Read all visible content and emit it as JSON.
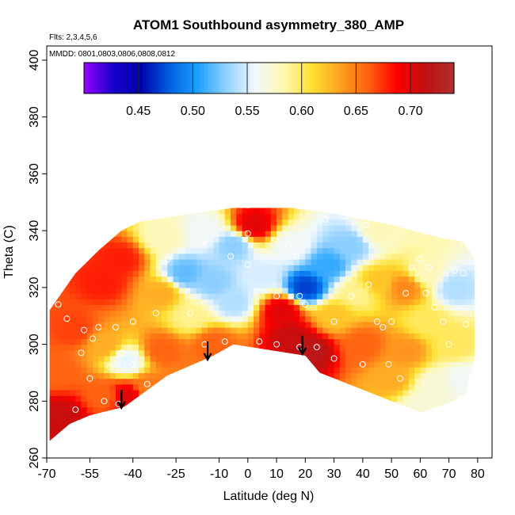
{
  "chart_data": {
    "type": "heatmap",
    "title": "ATOM1 Southbound asymmetry_380_AMP",
    "flights_note": "Flts: 2,3,4,5,6",
    "dates_note": "MMDD: 0801,0803,0806,0808,0812",
    "xlabel": "Latitude (deg N)",
    "ylabel": "Theta (C)",
    "xlim": [
      -70,
      85
    ],
    "ylim": [
      260,
      405
    ],
    "xticks": [
      -70,
      -55,
      -40,
      -25,
      -10,
      0,
      10,
      20,
      30,
      40,
      50,
      60,
      70,
      80
    ],
    "yticks": [
      260,
      280,
      300,
      320,
      340,
      360,
      380,
      400
    ],
    "colorbar": {
      "range": [
        0.4,
        0.74
      ],
      "ticks": [
        0.45,
        0.5,
        0.55,
        0.6,
        0.65,
        0.7
      ],
      "tick_labels": [
        "0.45",
        "0.50",
        "0.55",
        "0.60",
        "0.65",
        "0.70"
      ],
      "colors": [
        "#9900ff",
        "#1a00cc",
        "#0000aa",
        "#0060e0",
        "#1ea0ff",
        "#8fd0ff",
        "#f0f8ff",
        "#fff8b0",
        "#ffe030",
        "#ffa020",
        "#ff6010",
        "#ff0000",
        "#c01010",
        "#b03030"
      ]
    },
    "boundary": [
      [
        -69,
        266
      ],
      [
        -69,
        312
      ],
      [
        -60,
        325
      ],
      [
        -52,
        333
      ],
      [
        -44,
        340
      ],
      [
        -38,
        343
      ],
      [
        -20,
        346
      ],
      [
        -5,
        348
      ],
      [
        15,
        348
      ],
      [
        30,
        346
      ],
      [
        50,
        342
      ],
      [
        65,
        338
      ],
      [
        75,
        336
      ],
      [
        79,
        330
      ],
      [
        79,
        295
      ],
      [
        76,
        283
      ],
      [
        72,
        280
      ],
      [
        60,
        276
      ],
      [
        40,
        284
      ],
      [
        25,
        290
      ],
      [
        20,
        296
      ],
      [
        -5,
        300
      ],
      [
        -12,
        296
      ],
      [
        -28,
        289
      ],
      [
        -43,
        278
      ],
      [
        -55,
        275
      ],
      [
        -62,
        272
      ]
    ],
    "values": [
      {
        "lat": -66,
        "theta": 290,
        "v": 0.66
      },
      {
        "lat": -60,
        "theta": 305,
        "v": 0.67
      },
      {
        "lat": -50,
        "theta": 322,
        "v": 0.68
      },
      {
        "lat": -44,
        "theta": 330,
        "v": 0.68
      },
      {
        "lat": -50,
        "theta": 300,
        "v": 0.63
      },
      {
        "lat": -42,
        "theta": 294,
        "v": 0.555
      },
      {
        "lat": -50,
        "theta": 282,
        "v": 0.66
      },
      {
        "lat": -42,
        "theta": 282,
        "v": 0.7
      },
      {
        "lat": -35,
        "theta": 285,
        "v": 0.65
      },
      {
        "lat": -65,
        "theta": 275,
        "v": 0.71
      },
      {
        "lat": -30,
        "theta": 298,
        "v": 0.66
      },
      {
        "lat": -30,
        "theta": 318,
        "v": 0.63
      },
      {
        "lat": -30,
        "theta": 338,
        "v": 0.58
      },
      {
        "lat": -22,
        "theta": 325,
        "v": 0.52
      },
      {
        "lat": -20,
        "theta": 310,
        "v": 0.59
      },
      {
        "lat": -12,
        "theta": 300,
        "v": 0.66
      },
      {
        "lat": -12,
        "theta": 322,
        "v": 0.53
      },
      {
        "lat": -5,
        "theta": 315,
        "v": 0.54
      },
      {
        "lat": -15,
        "theta": 340,
        "v": 0.56
      },
      {
        "lat": -5,
        "theta": 335,
        "v": 0.53
      },
      {
        "lat": 2,
        "theta": 342,
        "v": 0.7
      },
      {
        "lat": 5,
        "theta": 324,
        "v": 0.55
      },
      {
        "lat": 12,
        "theta": 312,
        "v": 0.7
      },
      {
        "lat": 15,
        "theta": 303,
        "v": 0.71
      },
      {
        "lat": 22,
        "theta": 298,
        "v": 0.72
      },
      {
        "lat": 15,
        "theta": 335,
        "v": 0.56
      },
      {
        "lat": 20,
        "theta": 320,
        "v": 0.47
      },
      {
        "lat": 28,
        "theta": 328,
        "v": 0.51
      },
      {
        "lat": 36,
        "theta": 335,
        "v": 0.53
      },
      {
        "lat": 30,
        "theta": 310,
        "v": 0.62
      },
      {
        "lat": 40,
        "theta": 300,
        "v": 0.66
      },
      {
        "lat": 38,
        "theta": 318,
        "v": 0.59
      },
      {
        "lat": 45,
        "theta": 322,
        "v": 0.62
      },
      {
        "lat": 45,
        "theta": 340,
        "v": 0.58
      },
      {
        "lat": 55,
        "theta": 320,
        "v": 0.645
      },
      {
        "lat": 55,
        "theta": 298,
        "v": 0.64
      },
      {
        "lat": 50,
        "theta": 288,
        "v": 0.63
      },
      {
        "lat": 62,
        "theta": 308,
        "v": 0.6
      },
      {
        "lat": 62,
        "theta": 325,
        "v": 0.58
      },
      {
        "lat": 72,
        "theta": 320,
        "v": 0.54
      },
      {
        "lat": 72,
        "theta": 300,
        "v": 0.6
      },
      {
        "lat": 65,
        "theta": 285,
        "v": 0.57
      },
      {
        "lat": 75,
        "theta": 288,
        "v": 0.56
      },
      {
        "lat": 60,
        "theta": 278,
        "v": 0.57
      }
    ],
    "obs_points": [
      [
        -66,
        314
      ],
      [
        -63,
        309
      ],
      [
        -57,
        305
      ],
      [
        -54,
        302
      ],
      [
        -52,
        306
      ],
      [
        -58,
        297
      ],
      [
        -55,
        288
      ],
      [
        -60,
        277
      ],
      [
        -50,
        280
      ],
      [
        -45,
        279
      ],
      [
        -48,
        292
      ],
      [
        -46,
        306
      ],
      [
        -44,
        297
      ],
      [
        -40,
        308
      ],
      [
        -40,
        293
      ],
      [
        -35,
        286
      ],
      [
        -32,
        311
      ],
      [
        -28,
        330
      ],
      [
        -20,
        311
      ],
      [
        -16,
        336
      ],
      [
        -15,
        300
      ],
      [
        -8,
        301
      ],
      [
        -6,
        331
      ],
      [
        0,
        298
      ],
      [
        0,
        328
      ],
      [
        0,
        339
      ],
      [
        0,
        349
      ],
      [
        4,
        301
      ],
      [
        10,
        317
      ],
      [
        10,
        300
      ],
      [
        14,
        335
      ],
      [
        17,
        331
      ],
      [
        18,
        317
      ],
      [
        18,
        299
      ],
      [
        20,
        314
      ],
      [
        24,
        299
      ],
      [
        27,
        344
      ],
      [
        30,
        308
      ],
      [
        30,
        295
      ],
      [
        36,
        317
      ],
      [
        40,
        293
      ],
      [
        41,
        342
      ],
      [
        42,
        321
      ],
      [
        45,
        308
      ],
      [
        47,
        306
      ],
      [
        49,
        293
      ],
      [
        50,
        308
      ],
      [
        53,
        288
      ],
      [
        55,
        318
      ],
      [
        57,
        327
      ],
      [
        60,
        330
      ],
      [
        62,
        318
      ],
      [
        63,
        327
      ],
      [
        65,
        313
      ],
      [
        68,
        308
      ],
      [
        70,
        300
      ],
      [
        72,
        326
      ],
      [
        75,
        325
      ],
      [
        76,
        307
      ],
      [
        77,
        290
      ],
      [
        78,
        288
      ],
      [
        78,
        281
      ]
    ],
    "arrows": [
      {
        "lat": -44,
        "theta": 284
      },
      {
        "lat": -14,
        "theta": 301
      },
      {
        "lat": 19,
        "theta": 303
      }
    ]
  }
}
